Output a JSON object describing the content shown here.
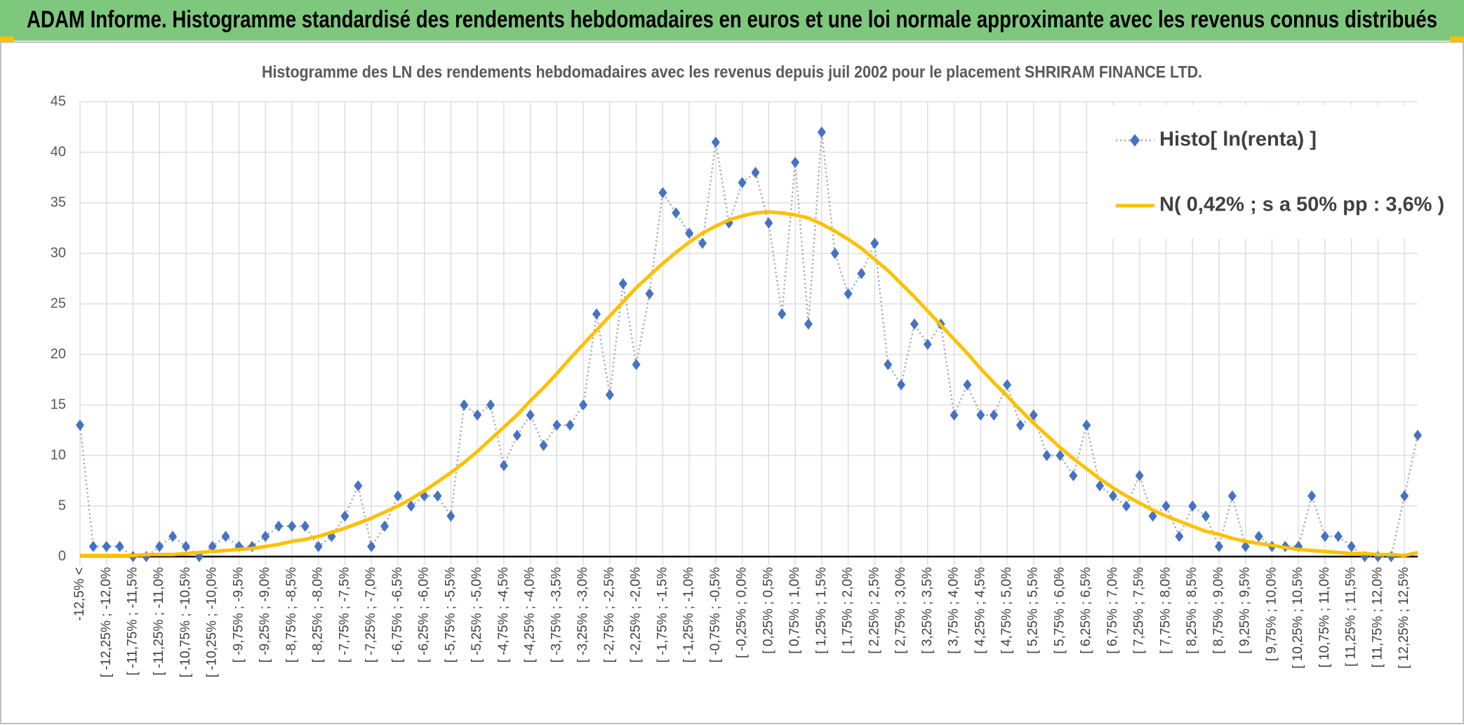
{
  "chart_data": {
    "type": "line",
    "header": "ADAM Informe. Histogramme standardisé des rendements hebdomadaires en euros et une loi normale approximante avec les revenus connus distribués",
    "title": "Histogramme des LN des rendements hebdomadaires avec les revenus depuis juil 2002 pour le placement SHRIRAM FINANCE LTD.",
    "categories": [
      "-12,5% <",
      null,
      "[ -12,25% ; -12,0%",
      null,
      "[ -11,75% ; -11,5%",
      null,
      "[ -11,25% ; -11,0%",
      null,
      "[ -10,75% ; -10,5%",
      null,
      "[ -10,25% ; -10,0%",
      null,
      "[ -9,75% ; -9,5%",
      null,
      "[ -9,25% ; -9,0%",
      null,
      "[ -8,75% ; -8,5%",
      null,
      "[ -8,25% ; -8,0%",
      null,
      "[ -7,75% ; -7,5%",
      null,
      "[ -7,25% ; -7,0%",
      null,
      "[ -6,75% ; -6,5%",
      null,
      "[ -6,25% ; -6,0%",
      null,
      "[ -5,75% ; -5,5%",
      null,
      "[ -5,25% ; -5,0%",
      null,
      "[ -4,75% ; -4,5%",
      null,
      "[ -4,25% ; -4,0%",
      null,
      "[ -3,75% ; -3,5%",
      null,
      "[ -3,25% ; -3,0%",
      null,
      "[ -2,75% ; -2,5%",
      null,
      "[ -2,25% ; -2,0%",
      null,
      "[ -1,75% ; -1,5%",
      null,
      "[ -1,25% ; -1,0%",
      null,
      "[ -0,75% ; -0,5%",
      null,
      "[ -0,25% ; 0,0%",
      null,
      "[ 0,25% ; 0,5%",
      null,
      "[ 0,75% ; 1,0%",
      null,
      "[ 1,25% ; 1,5%",
      null,
      "[ 1,75% ; 2,0%",
      null,
      "[ 2,25% ; 2,5%",
      null,
      "[ 2,75% ; 3,0%",
      null,
      "[ 3,25% ; 3,5%",
      null,
      "[ 3,75% ; 4,0%",
      null,
      "[ 4,25% ; 4,5%",
      null,
      "[ 4,75% ; 5,0%",
      null,
      "[ 5,25% ; 5,5%",
      null,
      "[ 5,75% ; 6,0%",
      null,
      "[ 6,25% ; 6,5%",
      null,
      "[ 6,75% ; 7,0%",
      null,
      "[ 7,25% ; 7,5%",
      null,
      "[ 7,75% ; 8,0%",
      null,
      "[ 8,25% ; 8,5%",
      null,
      "[ 8,75% ; 9,0%",
      null,
      "[ 9,25% ; 9,5%",
      null,
      "[ 9,75% ; 10,0%",
      null,
      "[ 10,25% ; 10,5%",
      null,
      "[ 10,75% ; 11,0%",
      null,
      "[ 11,25% ; 11,5%",
      null,
      "[ 11,75% ; 12,0%",
      null,
      "[ 12,25% ; 12,5%",
      null
    ],
    "series": [
      {
        "name": "Histo[ ln(renta) ]",
        "color": "#4472c4",
        "line_color": "#a6a6a6",
        "values": [
          13,
          1,
          1,
          1,
          0,
          0,
          1,
          2,
          1,
          0,
          1,
          2,
          1,
          1,
          2,
          3,
          3,
          3,
          1,
          2,
          4,
          7,
          1,
          3,
          6,
          5,
          6,
          6,
          4,
          15,
          14,
          15,
          9,
          12,
          14,
          11,
          13,
          13,
          15,
          24,
          16,
          27,
          19,
          26,
          36,
          34,
          32,
          31,
          41,
          33,
          37,
          38,
          33,
          24,
          39,
          23,
          42,
          30,
          26,
          28,
          31,
          19,
          17,
          23,
          21,
          23,
          14,
          17,
          14,
          14,
          17,
          13,
          14,
          10,
          10,
          8,
          13,
          7,
          6,
          5,
          8,
          4,
          5,
          2,
          5,
          4,
          1,
          6,
          1,
          2,
          1,
          1,
          1,
          6,
          2,
          2,
          1,
          0,
          0,
          0,
          6,
          12
        ]
      },
      {
        "name": "N( 0,42% ; s a 50% pp : 3,6% )",
        "color": "#ffc000",
        "values": [
          0.1,
          0.1,
          0.1,
          0.1,
          0.1,
          0.2,
          0.2,
          0.2,
          0.3,
          0.4,
          0.5,
          0.6,
          0.7,
          0.8,
          1.0,
          1.2,
          1.5,
          1.7,
          2.0,
          2.4,
          2.8,
          3.3,
          3.8,
          4.4,
          5.0,
          5.7,
          6.5,
          7.4,
          8.3,
          9.3,
          10.4,
          11.6,
          12.8,
          14.0,
          15.4,
          16.7,
          18.1,
          19.6,
          21.0,
          22.4,
          23.8,
          25.2,
          26.6,
          27.8,
          29.0,
          30.1,
          31.1,
          32.0,
          32.7,
          33.3,
          33.7,
          34.0,
          34.1,
          34.0,
          33.8,
          33.5,
          32.9,
          32.2,
          31.4,
          30.5,
          29.4,
          28.3,
          27.0,
          25.7,
          24.3,
          22.9,
          21.5,
          20.1,
          18.6,
          17.2,
          15.9,
          14.5,
          13.2,
          12.0,
          10.8,
          9.7,
          8.7,
          7.7,
          6.8,
          6.0,
          5.3,
          4.6,
          4.0,
          3.5,
          3.0,
          2.5,
          2.2,
          1.8,
          1.5,
          1.3,
          1.1,
          0.9,
          0.7,
          0.6,
          0.5,
          0.4,
          0.3,
          0.3,
          0.2,
          0.2,
          0.1,
          0.4
        ]
      }
    ],
    "ylim": [
      0,
      45
    ],
    "yticks": [
      0,
      5,
      10,
      15,
      20,
      25,
      30,
      35,
      40,
      45
    ],
    "grid": true,
    "legend": "upper right"
  }
}
